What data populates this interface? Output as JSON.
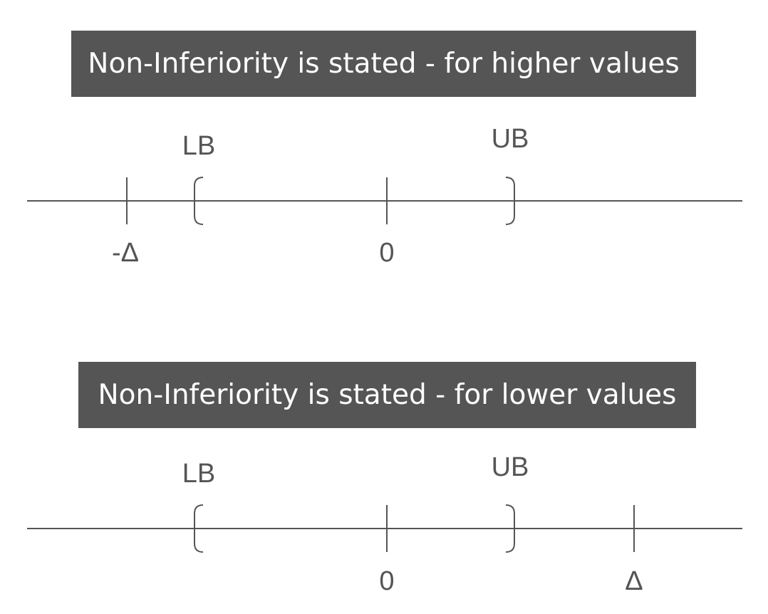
{
  "panels": [
    {
      "title": "Non-Inferiority is stated - for higher values",
      "lb_label": "LB",
      "ub_label": "UB",
      "zero_label": "0",
      "margin_label": "-Δ"
    },
    {
      "title": "Non-Inferiority is stated - for lower values",
      "lb_label": "LB",
      "ub_label": "UB",
      "zero_label": "0",
      "margin_label": "Δ"
    }
  ],
  "colors": {
    "banner_background": "#555555",
    "banner_text": "#ffffff",
    "line": "#555555",
    "label": "#555555"
  }
}
